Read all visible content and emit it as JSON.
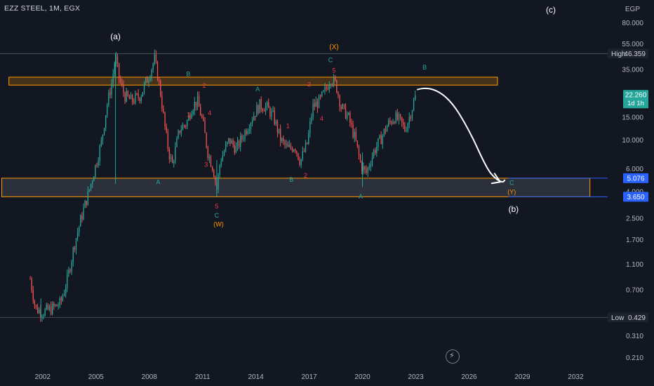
{
  "header": {
    "symbol": "EZZ STEEL, 1M, EGX"
  },
  "axis_unit": "EGP",
  "replay_button": {
    "icon": "lightning-icon"
  },
  "chart_data": {
    "type": "candlestick",
    "scale": "log",
    "ylim": [
      0.18,
      120
    ],
    "xlim": [
      1999.6,
      2033.8
    ],
    "y_ticks": [
      "80.000",
      "55.000",
      "35.000",
      "15.000",
      "10.000",
      "6.000",
      "4.000",
      "2.500",
      "1.700",
      "1.100",
      "0.700",
      "0.310",
      "0.210"
    ],
    "x_ticks": [
      "2002",
      "2005",
      "2008",
      "2011",
      "2014",
      "2017",
      "2020",
      "2023",
      "2026",
      "2029",
      "2032"
    ],
    "grid": false,
    "markers": {
      "high": {
        "label": "High",
        "value": "46.359"
      },
      "low": {
        "label": "Low",
        "value": "0.429"
      },
      "last": {
        "value": "22.260",
        "countdown": "1d 1h",
        "color": "#26a69a"
      },
      "box_top": {
        "value": "5.076",
        "color": "#2962ff"
      },
      "box_bottom": {
        "value": "3.650",
        "color": "#2962ff"
      }
    },
    "zones": [
      {
        "name": "resistance",
        "x0": 2000.1,
        "x1": 2027.6,
        "y0": 26.5,
        "y1": 30.5,
        "fill": "rgba(255,152,0,0.22)",
        "stroke": "#ff9800"
      },
      {
        "name": "support",
        "x0": 1999.7,
        "x1": 2032.8,
        "y0": 3.65,
        "y1": 5.076,
        "fill": "rgba(120,123,134,0.25)",
        "stroke": "#ff9800"
      }
    ],
    "price_path": [
      [
        2001.3,
        0.85
      ],
      [
        2001.6,
        0.5
      ],
      [
        2002.0,
        0.47
      ],
      [
        2002.5,
        0.5
      ],
      [
        2003.0,
        0.55
      ],
      [
        2003.4,
        0.85
      ],
      [
        2003.8,
        1.6
      ],
      [
        2004.2,
        2.6
      ],
      [
        2004.6,
        4.0
      ],
      [
        2005.0,
        6.5
      ],
      [
        2005.3,
        9.5
      ],
      [
        2005.6,
        18
      ],
      [
        2005.9,
        28
      ],
      [
        2006.1,
        44
      ],
      [
        2006.3,
        30
      ],
      [
        2006.6,
        22
      ],
      [
        2007.0,
        20
      ],
      [
        2007.5,
        22
      ],
      [
        2008.0,
        32
      ],
      [
        2008.3,
        42
      ],
      [
        2008.6,
        25
      ],
      [
        2008.9,
        12
      ],
      [
        2009.1,
        8
      ],
      [
        2009.3,
        6.5
      ],
      [
        2009.7,
        12
      ],
      [
        2010.1,
        13.5
      ],
      [
        2010.4,
        18
      ],
      [
        2010.7,
        20
      ],
      [
        2011.0,
        14
      ],
      [
        2011.3,
        8
      ],
      [
        2011.6,
        6.0
      ],
      [
        2011.8,
        4.2
      ],
      [
        2012.0,
        7
      ],
      [
        2012.5,
        10
      ],
      [
        2012.9,
        8.5
      ],
      [
        2013.3,
        11
      ],
      [
        2013.8,
        15
      ],
      [
        2014.2,
        18.5
      ],
      [
        2014.6,
        18
      ],
      [
        2015.0,
        15
      ],
      [
        2015.4,
        10
      ],
      [
        2015.8,
        8.5
      ],
      [
        2016.2,
        9
      ],
      [
        2016.5,
        6.8
      ],
      [
        2016.9,
        9.5
      ],
      [
        2017.2,
        18
      ],
      [
        2017.6,
        20
      ],
      [
        2017.9,
        24
      ],
      [
        2018.2,
        30
      ],
      [
        2018.5,
        27
      ],
      [
        2018.8,
        18
      ],
      [
        2019.2,
        15
      ],
      [
        2019.6,
        10
      ],
      [
        2019.9,
        6.5
      ],
      [
        2020.2,
        5.5
      ],
      [
        2020.6,
        8
      ],
      [
        2021.0,
        10
      ],
      [
        2021.4,
        13
      ],
      [
        2021.8,
        15
      ],
      [
        2022.1,
        14
      ],
      [
        2022.4,
        12
      ],
      [
        2022.7,
        16
      ],
      [
        2023.0,
        22.26
      ]
    ],
    "spikes": [
      {
        "x": 2006.1,
        "low": 4.6,
        "high": 46.359
      },
      {
        "x": 2011.8,
        "low": 3.65,
        "high": 7
      },
      {
        "x": 2020.0,
        "low": 4.35,
        "high": 8
      },
      {
        "x": 2001.9,
        "low": 0.429,
        "high": 0.6
      }
    ],
    "projection": [
      [
        2023.1,
        24.5
      ],
      [
        2023.7,
        26
      ],
      [
        2024.9,
        21
      ],
      [
        2026.0,
        12
      ],
      [
        2027.0,
        6
      ],
      [
        2027.5,
        5.0
      ],
      [
        2027.9,
        4.7
      ],
      [
        2028.0,
        4.9
      ]
    ],
    "annotations": [
      {
        "text": "(a)",
        "x": 2006.1,
        "y": 62,
        "color": "#ffffff",
        "size": 12
      },
      {
        "text": "(c)",
        "x": 2030.6,
        "y": 100,
        "color": "#ffffff",
        "size": 12
      },
      {
        "text": "(b)",
        "x": 2028.5,
        "y": 2.9,
        "color": "#ffffff",
        "size": 12
      },
      {
        "text": "(X)",
        "x": 2018.4,
        "y": 52,
        "color": "#ff9800",
        "size": 10
      },
      {
        "text": "C",
        "x": 2018.2,
        "y": 41,
        "color": "#26a69a",
        "size": 9
      },
      {
        "text": "5",
        "x": 2018.4,
        "y": 34,
        "color": "#f23645",
        "size": 9
      },
      {
        "text": "B",
        "x": 2010.2,
        "y": 32,
        "color": "#26a69a",
        "size": 9
      },
      {
        "text": "2",
        "x": 2011.1,
        "y": 26,
        "color": "#f23645",
        "size": 9
      },
      {
        "text": "A",
        "x": 2014.1,
        "y": 24.5,
        "color": "#26a69a",
        "size": 9
      },
      {
        "text": "3",
        "x": 2017.0,
        "y": 26.5,
        "color": "#f23645",
        "size": 9
      },
      {
        "text": "B",
        "x": 2023.5,
        "y": 36,
        "color": "#26a69a",
        "size": 9
      },
      {
        "text": "1",
        "x": 2010.2,
        "y": 15.5,
        "color": "#f23645",
        "size": 9
      },
      {
        "text": "4",
        "x": 2011.4,
        "y": 16,
        "color": "#f23645",
        "size": 9
      },
      {
        "text": "1",
        "x": 2015.8,
        "y": 12.7,
        "color": "#f23645",
        "size": 9
      },
      {
        "text": "4",
        "x": 2017.7,
        "y": 14.5,
        "color": "#f23645",
        "size": 9
      },
      {
        "text": "3",
        "x": 2011.2,
        "y": 6.4,
        "color": "#f23645",
        "size": 9
      },
      {
        "text": "2",
        "x": 2016.8,
        "y": 5.3,
        "color": "#f23645",
        "size": 9
      },
      {
        "text": "A",
        "x": 2008.5,
        "y": 4.7,
        "color": "#26a69a",
        "size": 9
      },
      {
        "text": "B",
        "x": 2016.0,
        "y": 4.9,
        "color": "#26a69a",
        "size": 9
      },
      {
        "text": "A",
        "x": 2019.9,
        "y": 3.65,
        "color": "#26a69a",
        "size": 9
      },
      {
        "text": "5",
        "x": 2011.8,
        "y": 3.05,
        "color": "#f23645",
        "size": 9
      },
      {
        "text": "C",
        "x": 2011.8,
        "y": 2.6,
        "color": "#26a69a",
        "size": 9
      },
      {
        "text": "(W)",
        "x": 2011.9,
        "y": 2.23,
        "color": "#ff9800",
        "size": 9
      },
      {
        "text": "C",
        "x": 2028.4,
        "y": 4.65,
        "color": "#26a69a",
        "size": 9
      },
      {
        "text": "(Y)",
        "x": 2028.4,
        "y": 3.95,
        "color": "#ff9800",
        "size": 9
      }
    ]
  }
}
